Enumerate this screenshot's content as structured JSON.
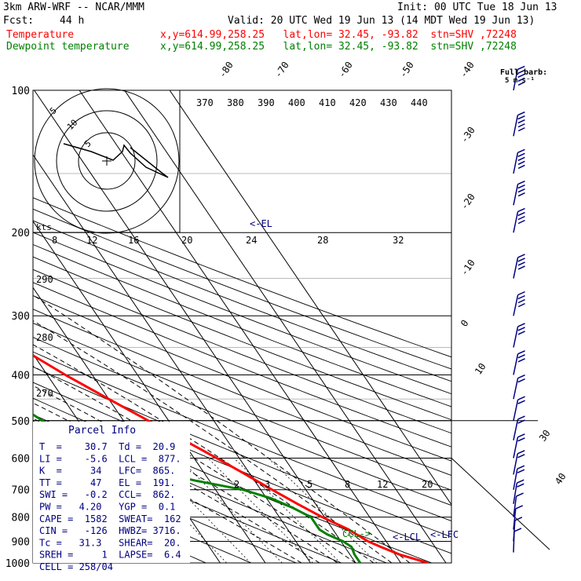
{
  "header": {
    "model": "3km ARW-WRF -- NCAR/MMM",
    "init": "Init: 00 UTC Tue 18 Jun 13",
    "fcst_label": "Fcst:",
    "fcst_value": "44 h",
    "valid": "Valid: 20 UTC Wed 19 Jun 13 (14 MDT Wed 19 Jun 13)",
    "temp_label": "Temperature",
    "temp_loc": "x,y=614.99,258.25   lat,lon= 32.45, -93.82  stn=SHV ,72248",
    "dew_label": "Dewpoint temperature",
    "dew_loc": "x,y=614.99,258.25   lat,lon= 32.45, -93.82  stn=SHV ,72248"
  },
  "colors": {
    "temperature": "#ff0000",
    "dewpoint": "#008000",
    "info": "#000080",
    "grid": "#000000"
  },
  "barb_legend": {
    "title": "Full barb:",
    "unit": "5 m s⁻¹"
  },
  "hodograph": {
    "unit": "kts",
    "ring_labels": [
      "5",
      "10",
      "5"
    ]
  },
  "el_marker": "<-EL",
  "lcl_marker": "<-LCL",
  "lfc_marker": "<-LFC",
  "ccl_marker": "CCL->",
  "parcel": {
    "title": "Parcel Info",
    "rows": [
      "T  =    30.7  Td =  20.9",
      "LI =    -5.6  LCL =  877.",
      "K  =     34   LFC=  865.",
      "TT =     47   EL =  191.",
      "SWI =   -0.2  CCL=  862.",
      "PW =   4.20   YGP =  0.1",
      "CAPE =  1582  SWEAT=  162",
      "CIN =   -126  HWBZ= 3716.",
      "Tc =   31.3   SHEAR=  20.",
      "SREH =     1  LAPSE=  6.4",
      "CELL = 258/04"
    ]
  },
  "chart_data": {
    "type": "line",
    "subtype": "skew-T log-p diagram",
    "y_axis": {
      "label": "",
      "scale": "log",
      "ylim": [
        1000,
        100
      ],
      "ticks": [
        100,
        200,
        300,
        400,
        500,
        600,
        700,
        800,
        900,
        1000
      ]
    },
    "isotherm_labels": [
      "-80",
      "-70",
      "-60",
      "-50",
      "-40",
      "-30",
      "-20",
      "-10",
      "0",
      "10",
      "30",
      "40"
    ],
    "theta_labels": [
      "370",
      "380",
      "390",
      "400",
      "410",
      "420",
      "430",
      "440"
    ],
    "mixing_ratio_labels_upper": [
      "8",
      "12",
      "16",
      "20",
      "24",
      "28",
      "32"
    ],
    "mixing_ratio_labels_lower": [
      "2",
      "3",
      "5",
      "8",
      "12",
      "20"
    ],
    "side_labels": [
      "290",
      "280",
      "270"
    ],
    "series": [
      {
        "name": "Temperature",
        "pressure": [
          1000,
          960,
          925,
          900,
          870,
          850,
          800,
          750,
          700,
          650,
          600,
          550,
          500,
          450,
          400,
          350,
          300,
          250,
          200,
          175,
          150,
          125,
          110,
          100
        ],
        "temperature": [
          36,
          31,
          28,
          26,
          24.5,
          23.5,
          19.5,
          16,
          12.5,
          9,
          5,
          0.5,
          -4.5,
          -10,
          -16,
          -22,
          -31,
          -41.5,
          -53.5,
          -59,
          -63,
          -69,
          -74,
          -77
        ]
      },
      {
        "name": "Dewpoint temperature",
        "pressure": [
          1000,
          960,
          925,
          900,
          870,
          850,
          800,
          760,
          730,
          700,
          670,
          640,
          600,
          570,
          540,
          500,
          450,
          400,
          350,
          300,
          250,
          220,
          200,
          175,
          150,
          125,
          110,
          100
        ],
        "temperature": [
          21,
          21,
          21.5,
          20.5,
          18,
          17,
          17,
          14,
          11,
          6,
          -3,
          -11,
          -20,
          -22.5,
          -24,
          -28,
          -32,
          -36,
          -43,
          -52,
          -59,
          -64,
          -69,
          -76,
          -82,
          -87,
          -90,
          -92
        ]
      }
    ],
    "wind_barbs_ms": [
      {
        "p": 950,
        "dir": 190,
        "spd": 5
      },
      {
        "p": 900,
        "dir": 200,
        "spd": 5
      },
      {
        "p": 850,
        "dir": 210,
        "spd": 6
      },
      {
        "p": 800,
        "dir": 220,
        "spd": 7
      },
      {
        "p": 750,
        "dir": 230,
        "spd": 8
      },
      {
        "p": 700,
        "dir": 240,
        "spd": 8
      },
      {
        "p": 650,
        "dir": 250,
        "spd": 8
      },
      {
        "p": 600,
        "dir": 255,
        "spd": 9
      },
      {
        "p": 550,
        "dir": 260,
        "spd": 10
      },
      {
        "p": 500,
        "dir": 265,
        "spd": 10
      },
      {
        "p": 450,
        "dir": 265,
        "spd": 12
      },
      {
        "p": 400,
        "dir": 270,
        "spd": 14
      },
      {
        "p": 350,
        "dir": 270,
        "spd": 15
      },
      {
        "p": 300,
        "dir": 270,
        "spd": 18
      },
      {
        "p": 250,
        "dir": 275,
        "spd": 20
      },
      {
        "p": 200,
        "dir": 280,
        "spd": 20
      },
      {
        "p": 175,
        "dir": 280,
        "spd": 22
      },
      {
        "p": 150,
        "dir": 285,
        "spd": 25
      },
      {
        "p": 125,
        "dir": 285,
        "spd": 25
      },
      {
        "p": 100,
        "dir": 290,
        "spd": 25
      }
    ]
  }
}
